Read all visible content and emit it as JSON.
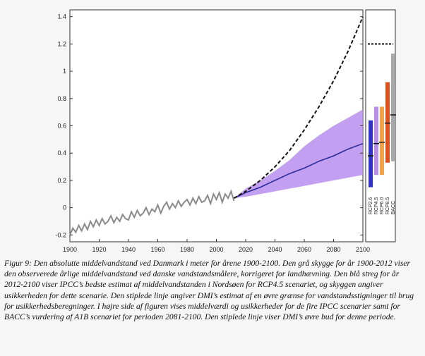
{
  "chart_data": {
    "type": "line",
    "title": "",
    "xlabel": "",
    "ylabel": "",
    "xlim": [
      1900,
      2100
    ],
    "ylim": [
      -0.25,
      1.45
    ],
    "x_ticks": [
      "1900",
      "1920",
      "1940",
      "1960",
      "1980",
      "2000",
      "2020",
      "2040",
      "2060",
      "2080",
      "2100"
    ],
    "y_ticks": [
      "-0.2",
      "0",
      "0.2",
      "0.4",
      "0.6",
      "0.8",
      "1",
      "1.2",
      "1.4"
    ],
    "grid": false,
    "series": [
      {
        "kind": "observed",
        "color": "#8a8a8a",
        "x": [
          1900,
          1902,
          1904,
          1906,
          1908,
          1910,
          1912,
          1914,
          1916,
          1918,
          1920,
          1922,
          1924,
          1926,
          1928,
          1930,
          1932,
          1934,
          1936,
          1938,
          1940,
          1942,
          1944,
          1946,
          1948,
          1950,
          1952,
          1954,
          1956,
          1958,
          1960,
          1962,
          1964,
          1966,
          1968,
          1970,
          1972,
          1974,
          1976,
          1978,
          1980,
          1982,
          1984,
          1986,
          1988,
          1990,
          1992,
          1994,
          1996,
          1998,
          2000,
          2002,
          2004,
          2006,
          2008,
          2010,
          2012
        ],
        "values": [
          -0.2,
          -0.15,
          -0.18,
          -0.13,
          -0.17,
          -0.12,
          -0.16,
          -0.1,
          -0.14,
          -0.09,
          -0.13,
          -0.08,
          -0.12,
          -0.1,
          -0.06,
          -0.11,
          -0.07,
          -0.1,
          -0.05,
          -0.08,
          -0.09,
          -0.03,
          -0.07,
          -0.02,
          -0.06,
          -0.04,
          0.0,
          -0.05,
          -0.01,
          -0.03,
          0.02,
          -0.04,
          0.01,
          0.04,
          -0.01,
          0.03,
          0.0,
          0.05,
          0.01,
          0.04,
          0.06,
          0.02,
          0.07,
          0.03,
          0.08,
          0.04,
          0.05,
          0.09,
          0.03,
          0.1,
          0.06,
          0.11,
          0.04,
          0.1,
          0.07,
          0.12,
          0.05
        ]
      },
      {
        "kind": "ipcc-rcp45-best-estimate",
        "color": "#2b2b9a",
        "x": [
          2012,
          2020,
          2030,
          2040,
          2050,
          2060,
          2070,
          2080,
          2090,
          2100
        ],
        "values": [
          0.07,
          0.11,
          0.15,
          0.2,
          0.25,
          0.29,
          0.34,
          0.38,
          0.43,
          0.47
        ]
      },
      {
        "kind": "dmi-upper-bound",
        "color": "#111111",
        "dashed": true,
        "x": [
          2012,
          2020,
          2030,
          2040,
          2050,
          2060,
          2070,
          2080,
          2090,
          2100
        ],
        "values": [
          0.07,
          0.12,
          0.2,
          0.3,
          0.42,
          0.57,
          0.74,
          0.93,
          1.15,
          1.4
        ]
      }
    ],
    "uncertainty_band": {
      "color": "#b88ef0",
      "x": [
        2012,
        2020,
        2030,
        2040,
        2050,
        2060,
        2070,
        2080,
        2090,
        2100
      ],
      "lower": [
        0.07,
        0.08,
        0.1,
        0.12,
        0.14,
        0.16,
        0.18,
        0.2,
        0.22,
        0.24
      ],
      "upper": [
        0.07,
        0.14,
        0.2,
        0.27,
        0.35,
        0.45,
        0.53,
        0.6,
        0.66,
        0.72
      ]
    },
    "side_panel": {
      "dmi_upper_line": 1.2,
      "bars": [
        {
          "label": "RCP2.6",
          "color": "#3333c2",
          "low": 0.15,
          "high": 0.64,
          "mid": 0.38
        },
        {
          "label": "RCP4.5",
          "color": "#b58ee8",
          "low": 0.24,
          "high": 0.74,
          "mid": 0.47
        },
        {
          "label": "RCP6.0",
          "color": "#f2a44d",
          "low": 0.24,
          "high": 0.74,
          "mid": 0.48
        },
        {
          "label": "RCP8.5",
          "color": "#d9531e",
          "low": 0.33,
          "high": 0.92,
          "mid": 0.62
        },
        {
          "label": "BACC",
          "color": "#a8a8a8",
          "low": 0.34,
          "high": 1.13,
          "mid": 0.68
        }
      ]
    }
  },
  "caption": {
    "text": "Figur 9: Den absolutte middelvandstand ved Danmark i meter for årene 1900-2100. Den grå skygge for år 1900-2012 viser den observerede årlige middelvandstand ved danske vandstandsmålere, korrigeret for landhævning. Den blå streg for år 2012-2100 viser IPCC’s bedste estimat af middelvandstanden i Nordsøen for RCP4.5 scenariet, og skyggen angiver usikkerheden for dette scenarie. Den stiplede linje angiver DMI’s estimat af en øvre grænse for vandstandsstigninger til brug for usikkerhedsberegninger. I højre side af figuren vises middelværdi og usikkerheder for de fire IPCC scenarier samt for BACC’s vurdering af A1B scenariet for perioden 2081-2100. Den stiplede linje viser DMI’s øvre bud for denne periode."
  }
}
